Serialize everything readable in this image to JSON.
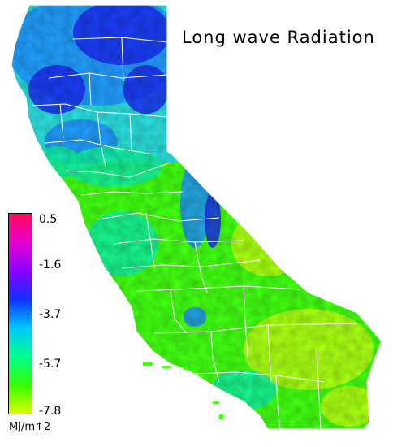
{
  "title": "Long wave Radiation",
  "colorbar": {
    "ticks": [
      "0.5",
      "-1.6",
      "-3.7",
      "-5.7",
      "-7.8"
    ],
    "unit": "MJ/m↑2",
    "stops": [
      "#ff0a5c",
      "#e600d0",
      "#8a00ff",
      "#1030ff",
      "#00c8ff",
      "#00ff8c",
      "#33ff00",
      "#ddff00"
    ]
  },
  "colors": {
    "cold": "#1a2cf0",
    "mid_blue": "#1e90ff",
    "cyan": "#27d6ff",
    "teal": "#10f0a0",
    "green": "#40ff10",
    "yellow_green": "#b8ff10",
    "border": "#ffffff"
  }
}
